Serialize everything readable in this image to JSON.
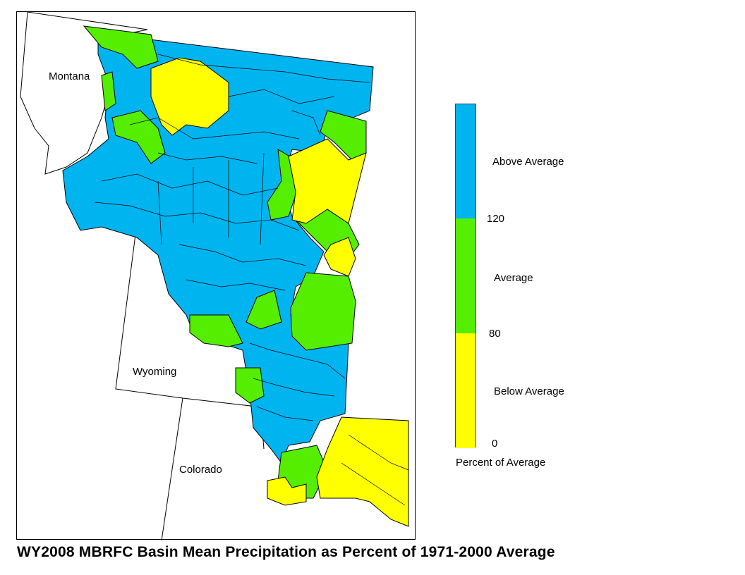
{
  "title": "WY2008 MBRFC Basin Mean Precipitation as Percent of 1971-2000 Average",
  "state_labels": {
    "montana": "Montana",
    "wyoming": "Wyoming",
    "colorado": "Colorado"
  },
  "legend": {
    "caption": "Percent of Average",
    "categories": [
      {
        "label": "Above Average",
        "color": "#00B4F0",
        "min": 120,
        "max": null
      },
      {
        "label": "Average",
        "color": "#55EE00",
        "min": 80,
        "max": 120
      },
      {
        "label": "Below Average",
        "color": "#FFFF00",
        "min": 0,
        "max": 80
      }
    ],
    "breaks": [
      "120",
      "80",
      "0"
    ]
  },
  "colors": {
    "above": "#00B4F0",
    "average": "#55EE00",
    "below": "#FFFF00",
    "state_fill": "#FFFFFF",
    "outline": "#000000"
  }
}
